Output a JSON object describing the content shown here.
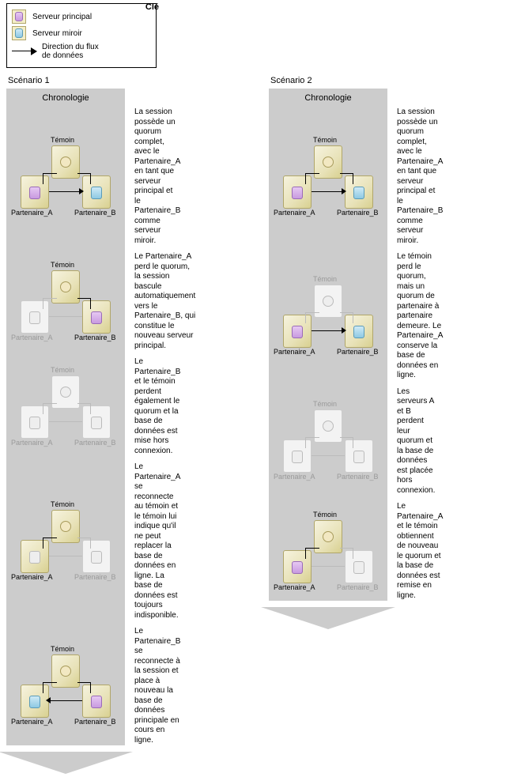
{
  "legend": {
    "title": "Clé",
    "principal": "Serveur principal",
    "mirror": "Serveur miroir",
    "flow": "Direction du flux\nde données"
  },
  "scenarios": [
    {
      "title": "Scénario 1",
      "timeline_header": "Chronologie",
      "steps": [
        {
          "desc": "La session possède un quorum complet, avec le Partenaire_A en tant que serveur principal et le Partenaire_B comme serveur miroir.",
          "type": "full-ab",
          "witness": "on",
          "a": "prin",
          "b": "mir"
        },
        {
          "desc": "Le Partenaire_A perd le quorum, la session bascule automatiquement vers le Partenaire_B, qui constitue le nouveau serveur principal.",
          "type": "wit-b",
          "witness": "on",
          "a": "off",
          "b": "prin"
        },
        {
          "desc": "Le Partenaire_B et le témoin perdent également le quorum et la base de données est mise hors connexion.",
          "type": "none",
          "witness": "off",
          "a": "off",
          "b": "off"
        },
        {
          "desc": "Le Partenaire_A se reconnecte au témoin et le témoin lui indique qu'il ne peut replacer la base de données en ligne. La base de données est toujours indisponible.",
          "type": "wit-a-dim",
          "witness": "on",
          "a": "mir-dim",
          "b": "off"
        },
        {
          "desc": "Le Partenaire_B se reconnecte à la session et place à nouveau la base de données principale en cours en ligne.",
          "type": "full-ba",
          "witness": "on",
          "a": "mir",
          "b": "prin"
        }
      ]
    },
    {
      "title": "Scénario 2",
      "timeline_header": "Chronologie",
      "steps": [
        {
          "desc": "La session possède un quorum complet, avec le Partenaire_A en tant que serveur principal et le Partenaire_B comme serveur miroir.",
          "type": "full-ab",
          "witness": "on",
          "a": "prin",
          "b": "mir"
        },
        {
          "desc": "Le témoin perd le quorum, mais un quorum de partenaire à partenaire demeure. Le Partenaire_A conserve la base de données en ligne.",
          "type": "ab-nowit",
          "witness": "off",
          "a": "prin",
          "b": "mir"
        },
        {
          "desc": "Les serveurs A et B perdent leur quorum et la base de données est placée hors connexion.",
          "type": "none",
          "witness": "off",
          "a": "off",
          "b": "off"
        },
        {
          "desc": "Le Partenaire_A et le témoin obtiennent de nouveau le quorum et la base de données est remise en ligne.",
          "type": "wit-a",
          "witness": "on",
          "a": "prin",
          "b": "off"
        }
      ]
    }
  ],
  "labels": {
    "witness": "Témoin",
    "a": "Partenaire_A",
    "b": "Partenaire_B"
  },
  "colors": {
    "timeline_bg": "#cccccc",
    "server_fill": "#eee7c3",
    "server_border": "#b0a66a",
    "dim": "#bdbdbd",
    "principal_db": "#c89ae0",
    "mirror_db": "#8ec9e3"
  }
}
